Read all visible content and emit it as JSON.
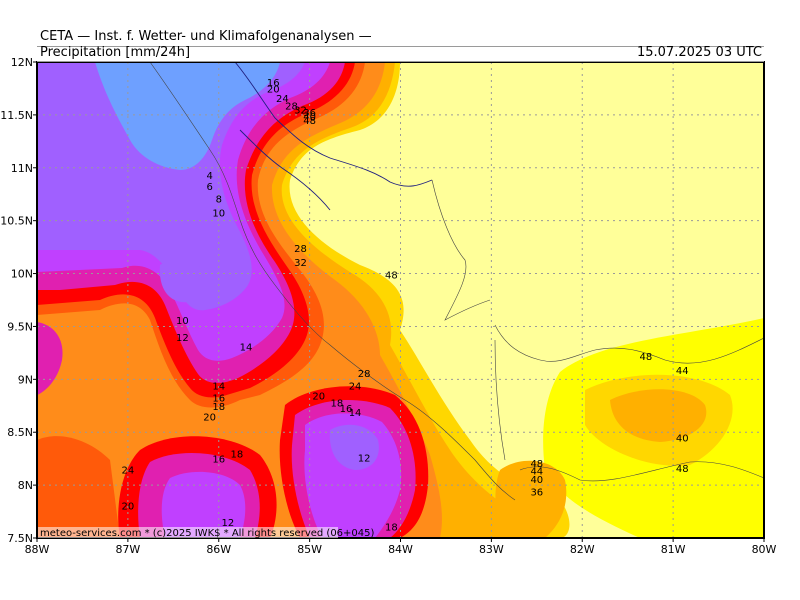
{
  "header": {
    "title": "CETA — Inst. f. Wetter- und Klimafolgenanalysen —",
    "subtitle": "Precipitation [mm/24h]",
    "datetime": "15.07.2025 03 UTC"
  },
  "footer": {
    "copyright": "meteo-services.com * (c)2025 IWK$ * All rights reserved (06+045)"
  },
  "axes": {
    "x_ticks": [
      "88W",
      "87W",
      "86W",
      "85W",
      "84W",
      "83W",
      "82W",
      "81W",
      "80W"
    ],
    "y_ticks": [
      "12N",
      "11.5N",
      "11N",
      "10.5N",
      "10N",
      "9.5N",
      "9N",
      "8.5N",
      "8N",
      "7.5N"
    ]
  },
  "map_data": {
    "extent": {
      "lon": [
        -88,
        -80
      ],
      "lat": [
        7.5,
        12
      ]
    },
    "grid": "dotted",
    "contour_labels": [
      {
        "lon": -85.4,
        "lat": 11.8,
        "text": "16"
      },
      {
        "lon": -85.4,
        "lat": 11.74,
        "text": "20"
      },
      {
        "lon": -85.3,
        "lat": 11.65,
        "text": "24"
      },
      {
        "lon": -85.2,
        "lat": 11.58,
        "text": "28"
      },
      {
        "lon": -85.1,
        "lat": 11.54,
        "text": "32"
      },
      {
        "lon": -85.0,
        "lat": 11.52,
        "text": "36"
      },
      {
        "lon": -85.0,
        "lat": 11.48,
        "text": "40"
      },
      {
        "lon": -85.0,
        "lat": 11.44,
        "text": "48"
      },
      {
        "lon": -86.1,
        "lat": 10.92,
        "text": "4"
      },
      {
        "lon": -86.1,
        "lat": 10.82,
        "text": "6"
      },
      {
        "lon": -86.0,
        "lat": 10.7,
        "text": "8"
      },
      {
        "lon": -86.0,
        "lat": 10.57,
        "text": "10"
      },
      {
        "lon": -85.1,
        "lat": 10.23,
        "text": "28"
      },
      {
        "lon": -85.1,
        "lat": 10.1,
        "text": "32"
      },
      {
        "lon": -84.1,
        "lat": 9.98,
        "text": "48"
      },
      {
        "lon": -86.4,
        "lat": 9.55,
        "text": "10"
      },
      {
        "lon": -86.4,
        "lat": 9.39,
        "text": "12"
      },
      {
        "lon": -85.7,
        "lat": 9.3,
        "text": "14"
      },
      {
        "lon": -84.4,
        "lat": 9.05,
        "text": "28"
      },
      {
        "lon": -84.5,
        "lat": 8.93,
        "text": "24"
      },
      {
        "lon": -86.0,
        "lat": 8.93,
        "text": "14"
      },
      {
        "lon": -86.0,
        "lat": 8.82,
        "text": "16"
      },
      {
        "lon": -86.0,
        "lat": 8.74,
        "text": "18"
      },
      {
        "lon": -86.1,
        "lat": 8.64,
        "text": "20"
      },
      {
        "lon": -84.9,
        "lat": 8.84,
        "text": "20"
      },
      {
        "lon": -84.7,
        "lat": 8.77,
        "text": "18"
      },
      {
        "lon": -84.6,
        "lat": 8.72,
        "text": "16"
      },
      {
        "lon": -84.5,
        "lat": 8.68,
        "text": "14"
      },
      {
        "lon": -85.8,
        "lat": 8.29,
        "text": "18"
      },
      {
        "lon": -86.0,
        "lat": 8.24,
        "text": "16"
      },
      {
        "lon": -84.4,
        "lat": 8.25,
        "text": "12"
      },
      {
        "lon": -81.3,
        "lat": 9.21,
        "text": "48"
      },
      {
        "lon": -80.9,
        "lat": 9.08,
        "text": "44"
      },
      {
        "lon": -80.9,
        "lat": 8.44,
        "text": "40"
      },
      {
        "lon": -80.9,
        "lat": 8.15,
        "text": "48"
      },
      {
        "lon": -82.5,
        "lat": 8.2,
        "text": "48"
      },
      {
        "lon": -82.5,
        "lat": 8.13,
        "text": "44"
      },
      {
        "lon": -82.5,
        "lat": 8.05,
        "text": "40"
      },
      {
        "lon": -82.5,
        "lat": 7.93,
        "text": "36"
      },
      {
        "lon": -87.0,
        "lat": 8.14,
        "text": "24"
      },
      {
        "lon": -87.0,
        "lat": 7.8,
        "text": "20"
      },
      {
        "lon": -85.9,
        "lat": 7.64,
        "text": "12"
      },
      {
        "lon": -84.1,
        "lat": 7.6,
        "text": "18"
      }
    ],
    "colors": {
      "pale_yellow": "#ffff99",
      "yellow": "#ffff00",
      "gold": "#ffd700",
      "amber": "#ffb000",
      "orange": "#ff8c1a",
      "orange_red": "#ff5a0a",
      "red": "#ff0000",
      "magenta": "#e020b0",
      "purple": "#c040ff",
      "violet": "#a060ff",
      "blue": "#6ea0ff"
    }
  }
}
